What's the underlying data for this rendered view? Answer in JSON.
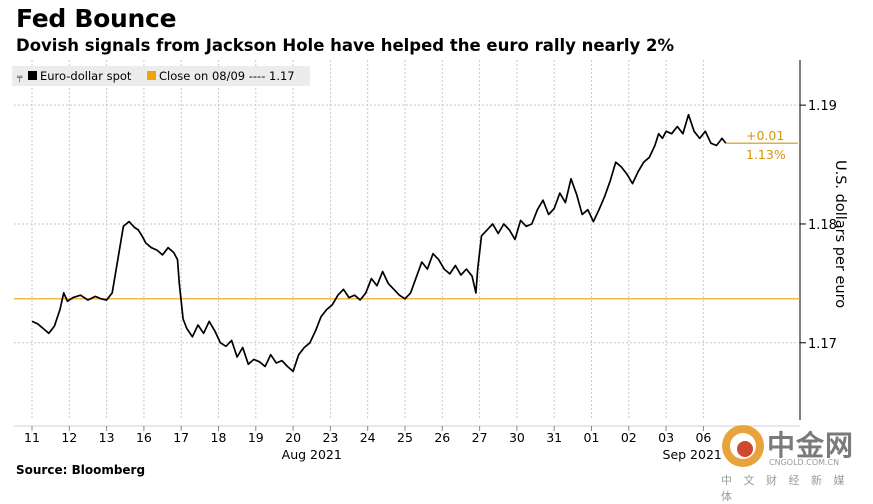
{
  "header": {
    "title": "Fed Bounce",
    "subtitle": "Dovish signals from Jackson Hole have helped the euro rally nearly 2%"
  },
  "source": "Source: Bloomberg",
  "watermark": {
    "name": "中金网",
    "domain": "CNGOLD.COM.CN",
    "tagline": "中 文 财 经 新 媒 体"
  },
  "colors": {
    "line": "#000000",
    "reference": "#f0a30a",
    "annotation": "#d4960a",
    "grid": "#c8c8c8"
  },
  "chart_data": {
    "type": "line",
    "title": "Fed Bounce",
    "ylabel": "U.S. dollars per euro",
    "ylim": [
      1.1635,
      1.1938
    ],
    "yticks": [
      1.17,
      1.18,
      1.19
    ],
    "ytick_labels": [
      "1.17",
      "1.18",
      "1.19"
    ],
    "x_tick_labels": [
      "11",
      "12",
      "13",
      "16",
      "17",
      "18",
      "19",
      "20",
      "23",
      "24",
      "25",
      "26",
      "27",
      "30",
      "31",
      "01",
      "02",
      "03",
      "06"
    ],
    "month_labels": [
      {
        "label": "Aug 2021",
        "at": 7.5
      },
      {
        "label": "Sep 2021",
        "at": 17.7
      }
    ],
    "legend": [
      {
        "label": "Euro-dollar spot",
        "style": "solid-square"
      },
      {
        "label": "Close on 08/09 ---- 1.17",
        "style": "orange-square"
      }
    ],
    "reference_line": {
      "label": "Close on 08/09",
      "value": 1.1737
    },
    "annotation": {
      "change": "+0.01",
      "percent": "1.13%"
    },
    "series": [
      {
        "name": "Euro-dollar spot",
        "x": [
          0,
          0.15,
          0.3,
          0.45,
          0.6,
          0.75,
          0.85,
          0.95,
          1.1,
          1.3,
          1.5,
          1.7,
          1.85,
          2.0,
          2.15,
          2.3,
          2.45,
          2.6,
          2.75,
          2.85,
          2.95,
          3.05,
          3.2,
          3.35,
          3.5,
          3.65,
          3.8,
          3.9,
          3.95,
          4.05,
          4.15,
          4.3,
          4.45,
          4.6,
          4.75,
          4.9,
          5.05,
          5.2,
          5.35,
          5.5,
          5.65,
          5.8,
          5.95,
          6.1,
          6.25,
          6.4,
          6.55,
          6.7,
          6.85,
          7.0,
          7.15,
          7.3,
          7.45,
          7.6,
          7.75,
          7.9,
          8.05,
          8.2,
          8.35,
          8.5,
          8.65,
          8.8,
          8.95,
          9.1,
          9.25,
          9.4,
          9.55,
          9.7,
          9.85,
          10.0,
          10.15,
          10.3,
          10.45,
          10.6,
          10.75,
          10.9,
          11.05,
          11.2,
          11.35,
          11.5,
          11.65,
          11.8,
          11.9,
          11.95,
          12.05,
          12.2,
          12.35,
          12.5,
          12.65,
          12.8,
          12.95,
          13.1,
          13.25,
          13.4,
          13.55,
          13.7,
          13.85,
          14.0,
          14.15,
          14.3,
          14.45,
          14.6,
          14.75,
          14.9,
          15.05,
          15.2,
          15.35,
          15.5,
          15.65,
          15.8,
          15.95,
          16.1,
          16.25,
          16.4,
          16.55,
          16.7,
          16.8,
          16.9,
          17.0,
          17.15,
          17.3,
          17.45,
          17.6,
          17.75,
          17.9,
          18.05,
          18.2,
          18.35,
          18.5,
          18.6
        ],
        "values": [
          1.1718,
          1.1716,
          1.1712,
          1.1708,
          1.1714,
          1.1728,
          1.1742,
          1.1735,
          1.1738,
          1.174,
          1.1736,
          1.1739,
          1.1737,
          1.1736,
          1.1742,
          1.177,
          1.1798,
          1.1802,
          1.1797,
          1.1795,
          1.179,
          1.1784,
          1.178,
          1.1778,
          1.1774,
          1.178,
          1.1776,
          1.177,
          1.175,
          1.172,
          1.1712,
          1.1705,
          1.1715,
          1.1708,
          1.1718,
          1.171,
          1.17,
          1.1697,
          1.1702,
          1.1688,
          1.1696,
          1.1682,
          1.1686,
          1.1684,
          1.168,
          1.169,
          1.1683,
          1.1685,
          1.168,
          1.1676,
          1.169,
          1.1696,
          1.17,
          1.171,
          1.1722,
          1.1728,
          1.1732,
          1.174,
          1.1745,
          1.1738,
          1.174,
          1.1736,
          1.1742,
          1.1754,
          1.1748,
          1.176,
          1.175,
          1.1745,
          1.174,
          1.1737,
          1.1742,
          1.1755,
          1.1768,
          1.1762,
          1.1775,
          1.177,
          1.1762,
          1.1758,
          1.1765,
          1.1757,
          1.1762,
          1.1756,
          1.1742,
          1.1762,
          1.179,
          1.1795,
          1.18,
          1.1792,
          1.18,
          1.1795,
          1.1787,
          1.1803,
          1.1798,
          1.18,
          1.1812,
          1.182,
          1.1808,
          1.1813,
          1.1826,
          1.1818,
          1.1838,
          1.1825,
          1.1808,
          1.1812,
          1.1802,
          1.1812,
          1.1823,
          1.1836,
          1.1852,
          1.1848,
          1.1842,
          1.1834,
          1.1844,
          1.1852,
          1.1856,
          1.1866,
          1.1876,
          1.1872,
          1.1878,
          1.1876,
          1.1882,
          1.1876,
          1.1892,
          1.1878,
          1.1872,
          1.1878,
          1.1868,
          1.1866,
          1.1872,
          1.1868
        ]
      }
    ]
  }
}
